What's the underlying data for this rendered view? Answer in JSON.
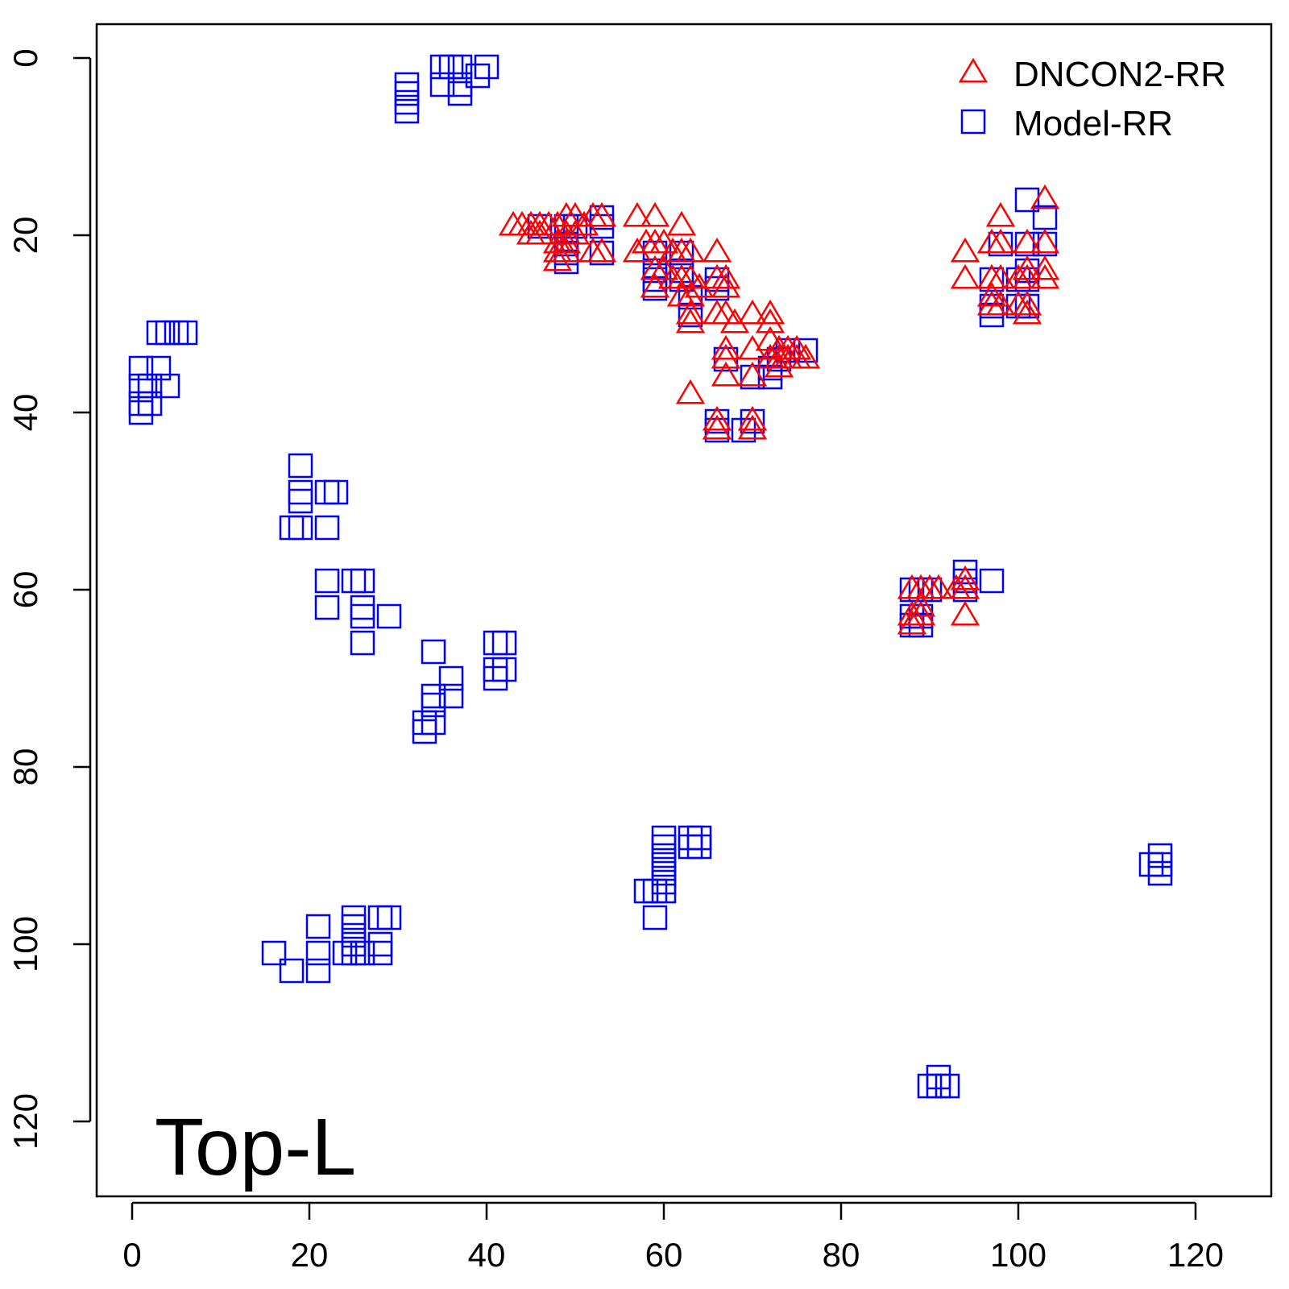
{
  "chart_data": {
    "type": "scatter",
    "title": "",
    "xlabel": "",
    "ylabel": "",
    "xlim": [
      -4,
      129
    ],
    "ylim": [
      -4,
      129
    ],
    "y_reversed": true,
    "x_ticks": [
      "0",
      "20",
      "40",
      "60",
      "80",
      "100",
      "120"
    ],
    "y_ticks": [
      "0",
      "20",
      "40",
      "60",
      "80",
      "100",
      "120"
    ],
    "grid": false,
    "legend_position": "top-right",
    "annotation": "Top-L",
    "series": [
      {
        "name": "DNCON2-RR",
        "marker": "triangle",
        "color": "#ff0000",
        "points": [
          [
            43,
            19
          ],
          [
            44,
            19
          ],
          [
            45,
            19
          ],
          [
            46,
            19
          ],
          [
            47,
            19
          ],
          [
            45,
            20
          ],
          [
            46,
            20
          ],
          [
            48,
            19
          ],
          [
            49,
            18
          ],
          [
            50,
            18
          ],
          [
            51,
            19
          ],
          [
            52,
            18
          ],
          [
            53,
            18
          ],
          [
            49,
            20
          ],
          [
            50,
            20
          ],
          [
            48,
            21
          ],
          [
            49,
            21
          ],
          [
            48,
            22
          ],
          [
            49,
            22
          ],
          [
            48,
            23
          ],
          [
            52,
            22
          ],
          [
            53,
            22
          ],
          [
            57,
            18
          ],
          [
            59,
            18
          ],
          [
            62,
            19
          ],
          [
            57,
            22
          ],
          [
            58,
            21
          ],
          [
            59,
            21
          ],
          [
            60,
            21
          ],
          [
            61,
            22
          ],
          [
            62,
            22
          ],
          [
            63,
            22
          ],
          [
            59,
            24
          ],
          [
            60,
            24
          ],
          [
            61,
            25
          ],
          [
            62,
            25
          ],
          [
            63,
            25
          ],
          [
            64,
            26
          ],
          [
            59,
            26
          ],
          [
            62,
            27
          ],
          [
            63,
            27
          ],
          [
            66,
            22
          ],
          [
            66,
            25
          ],
          [
            67,
            25
          ],
          [
            67,
            26
          ],
          [
            63,
            29
          ],
          [
            63,
            30
          ],
          [
            66,
            29
          ],
          [
            67,
            29
          ],
          [
            68,
            30
          ],
          [
            70,
            29
          ],
          [
            72,
            29
          ],
          [
            72,
            30
          ],
          [
            67,
            33
          ],
          [
            67,
            34
          ],
          [
            70,
            33
          ],
          [
            72,
            32
          ],
          [
            73,
            33
          ],
          [
            74,
            33
          ],
          [
            75,
            33
          ],
          [
            72,
            34
          ],
          [
            73,
            34
          ],
          [
            74,
            34
          ],
          [
            75,
            34
          ],
          [
            76,
            34
          ],
          [
            67,
            36
          ],
          [
            70,
            36
          ],
          [
            73,
            35
          ],
          [
            63,
            38
          ],
          [
            66,
            41
          ],
          [
            66,
            42
          ],
          [
            70,
            41
          ],
          [
            70,
            42
          ],
          [
            94,
            22
          ],
          [
            94,
            25
          ],
          [
            97,
            21
          ],
          [
            98,
            18
          ],
          [
            98,
            21
          ],
          [
            97,
            25
          ],
          [
            98,
            25
          ],
          [
            100,
            25
          ],
          [
            101,
            25
          ],
          [
            101,
            24
          ],
          [
            97,
            27
          ],
          [
            97,
            28
          ],
          [
            98,
            28
          ],
          [
            100,
            28
          ],
          [
            101,
            28
          ],
          [
            101,
            29
          ],
          [
            101,
            21
          ],
          [
            103,
            21
          ],
          [
            103,
            16
          ],
          [
            103,
            24
          ],
          [
            103,
            25
          ],
          [
            88,
            60
          ],
          [
            89,
            60
          ],
          [
            90,
            60
          ],
          [
            91,
            60
          ],
          [
            93,
            60
          ],
          [
            94,
            60
          ],
          [
            94,
            59
          ],
          [
            88,
            63
          ],
          [
            88,
            64
          ],
          [
            89,
            62
          ],
          [
            89,
            63
          ],
          [
            94,
            63
          ]
        ]
      },
      {
        "name": "Model-RR",
        "marker": "square",
        "color": "#0000ff",
        "points": [
          [
            31,
            3
          ],
          [
            31,
            4
          ],
          [
            31,
            5
          ],
          [
            31,
            6
          ],
          [
            35,
            1
          ],
          [
            36,
            1
          ],
          [
            37,
            1
          ],
          [
            40,
            1
          ],
          [
            35,
            3
          ],
          [
            37,
            3
          ],
          [
            39,
            2
          ],
          [
            37,
            4
          ],
          [
            3,
            31
          ],
          [
            4,
            31
          ],
          [
            5,
            31
          ],
          [
            6,
            31
          ],
          [
            1,
            35
          ],
          [
            3,
            35
          ],
          [
            1,
            37
          ],
          [
            2,
            37
          ],
          [
            4,
            37
          ],
          [
            1,
            39
          ],
          [
            2,
            39
          ],
          [
            1,
            40
          ],
          [
            19,
            46
          ],
          [
            19,
            49
          ],
          [
            19,
            50
          ],
          [
            22,
            49
          ],
          [
            23,
            49
          ],
          [
            18,
            53
          ],
          [
            19,
            53
          ],
          [
            22,
            53
          ],
          [
            22,
            59
          ],
          [
            25,
            59
          ],
          [
            26,
            59
          ],
          [
            22,
            62
          ],
          [
            26,
            62
          ],
          [
            26,
            63
          ],
          [
            29,
            63
          ],
          [
            26,
            66
          ],
          [
            34,
            67
          ],
          [
            36,
            70
          ],
          [
            34,
            72
          ],
          [
            36,
            72
          ],
          [
            34,
            73
          ],
          [
            33,
            75
          ],
          [
            34,
            75
          ],
          [
            33,
            76
          ],
          [
            41,
            66
          ],
          [
            42,
            66
          ],
          [
            41,
            69
          ],
          [
            42,
            69
          ],
          [
            41,
            70
          ],
          [
            16,
            101
          ],
          [
            18,
            103
          ],
          [
            21,
            98
          ],
          [
            21,
            101
          ],
          [
            21,
            103
          ],
          [
            24,
            101
          ],
          [
            25,
            101
          ],
          [
            26,
            101
          ],
          [
            25,
            97
          ],
          [
            25,
            98
          ],
          [
            25,
            99
          ],
          [
            25,
            100
          ],
          [
            28,
            97
          ],
          [
            29,
            97
          ],
          [
            28,
            100
          ],
          [
            28,
            101
          ],
          [
            58,
            94
          ],
          [
            59,
            94
          ],
          [
            60,
            94
          ],
          [
            60,
            93
          ],
          [
            59,
            97
          ],
          [
            60,
            88
          ],
          [
            60,
            89
          ],
          [
            60,
            90
          ],
          [
            60,
            91
          ],
          [
            60,
            92
          ],
          [
            63,
            88
          ],
          [
            64,
            88
          ],
          [
            63,
            89
          ],
          [
            64,
            89
          ],
          [
            115,
            91
          ],
          [
            116,
            90
          ],
          [
            116,
            91
          ],
          [
            116,
            92
          ],
          [
            91,
            115
          ],
          [
            92,
            116
          ],
          [
            90,
            116
          ],
          [
            91,
            116
          ],
          [
            46,
            19
          ],
          [
            49,
            19
          ],
          [
            50,
            19
          ],
          [
            53,
            18
          ],
          [
            53,
            19
          ],
          [
            49,
            21
          ],
          [
            49,
            22
          ],
          [
            49,
            23
          ],
          [
            53,
            22
          ],
          [
            59,
            22
          ],
          [
            62,
            22
          ],
          [
            59,
            24
          ],
          [
            59,
            25
          ],
          [
            59,
            26
          ],
          [
            62,
            24
          ],
          [
            62,
            25
          ],
          [
            63,
            27
          ],
          [
            63,
            29
          ],
          [
            66,
            25
          ],
          [
            66,
            26
          ],
          [
            67,
            34
          ],
          [
            70,
            36
          ],
          [
            72,
            35
          ],
          [
            72,
            36
          ],
          [
            73,
            34
          ],
          [
            74,
            33
          ],
          [
            76,
            33
          ],
          [
            66,
            41
          ],
          [
            66,
            42
          ],
          [
            69,
            42
          ],
          [
            70,
            41
          ],
          [
            97,
            25
          ],
          [
            97,
            28
          ],
          [
            97,
            29
          ],
          [
            98,
            21
          ],
          [
            100,
            25
          ],
          [
            100,
            28
          ],
          [
            101,
            16
          ],
          [
            101,
            21
          ],
          [
            101,
            24
          ],
          [
            101,
            25
          ],
          [
            101,
            28
          ],
          [
            103,
            18
          ],
          [
            103,
            21
          ],
          [
            88,
            60
          ],
          [
            89,
            60
          ],
          [
            90,
            60
          ],
          [
            88,
            63
          ],
          [
            89,
            63
          ],
          [
            88,
            64
          ],
          [
            89,
            64
          ],
          [
            94,
            58
          ],
          [
            94,
            59
          ],
          [
            94,
            60
          ],
          [
            97,
            59
          ]
        ]
      }
    ]
  }
}
